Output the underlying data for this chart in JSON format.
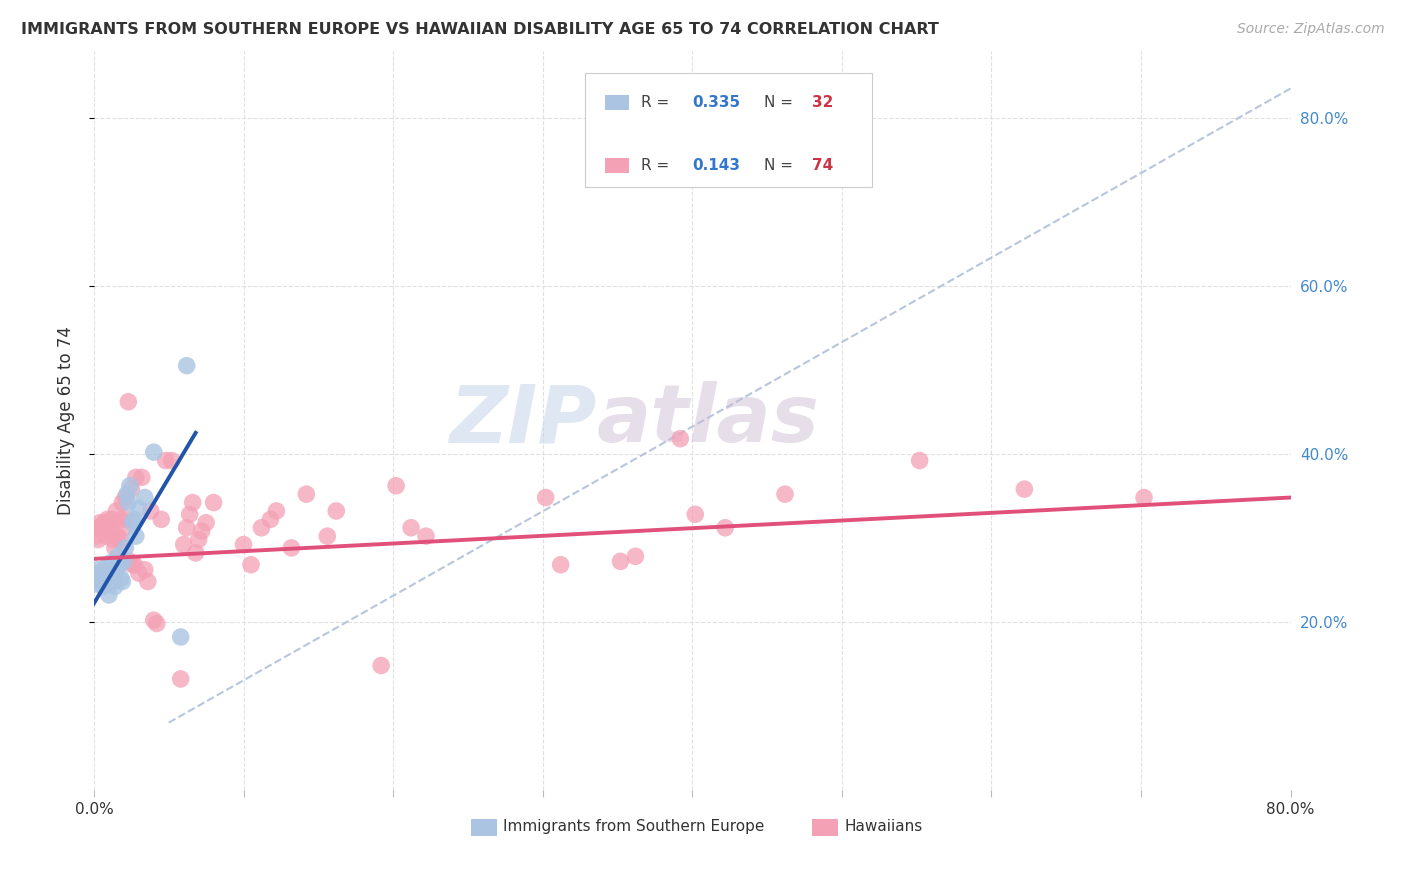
{
  "title": "IMMIGRANTS FROM SOUTHERN EUROPE VS HAWAIIAN DISABILITY AGE 65 TO 74 CORRELATION CHART",
  "source": "Source: ZipAtlas.com",
  "ylabel": "Disability Age 65 to 74",
  "xlim": [
    0.0,
    0.8
  ],
  "ylim": [
    0.0,
    0.88
  ],
  "yticks": [
    0.2,
    0.4,
    0.6,
    0.8
  ],
  "ytick_labels": [
    "20.0%",
    "40.0%",
    "60.0%",
    "80.0%"
  ],
  "xticks": [
    0.0,
    0.1,
    0.2,
    0.3,
    0.4,
    0.5,
    0.6,
    0.7,
    0.8
  ],
  "color_blue": "#aac4e2",
  "color_blue_line": "#2255aa",
  "color_pink": "#f4a0b5",
  "color_pink_line": "#e0507a",
  "color_dash": "#b0c0d8",
  "watermark_zip": "ZIP",
  "watermark_atlas": "atlas",
  "blue_points": [
    [
      0.001,
      0.245
    ],
    [
      0.002,
      0.262
    ],
    [
      0.003,
      0.258
    ],
    [
      0.004,
      0.25
    ],
    [
      0.005,
      0.255
    ],
    [
      0.006,
      0.242
    ],
    [
      0.007,
      0.255
    ],
    [
      0.008,
      0.265
    ],
    [
      0.009,
      0.26
    ],
    [
      0.01,
      0.232
    ],
    [
      0.011,
      0.27
    ],
    [
      0.012,
      0.255
    ],
    [
      0.013,
      0.248
    ],
    [
      0.014,
      0.242
    ],
    [
      0.015,
      0.262
    ],
    [
      0.016,
      0.278
    ],
    [
      0.017,
      0.268
    ],
    [
      0.018,
      0.252
    ],
    [
      0.019,
      0.248
    ],
    [
      0.02,
      0.272
    ],
    [
      0.021,
      0.288
    ],
    [
      0.022,
      0.352
    ],
    [
      0.023,
      0.342
    ],
    [
      0.024,
      0.362
    ],
    [
      0.026,
      0.318
    ],
    [
      0.027,
      0.322
    ],
    [
      0.028,
      0.302
    ],
    [
      0.03,
      0.335
    ],
    [
      0.034,
      0.348
    ],
    [
      0.04,
      0.402
    ],
    [
      0.058,
      0.182
    ],
    [
      0.062,
      0.505
    ]
  ],
  "pink_points": [
    [
      0.001,
      0.302
    ],
    [
      0.002,
      0.312
    ],
    [
      0.003,
      0.298
    ],
    [
      0.004,
      0.318
    ],
    [
      0.005,
      0.312
    ],
    [
      0.006,
      0.308
    ],
    [
      0.007,
      0.318
    ],
    [
      0.008,
      0.302
    ],
    [
      0.009,
      0.322
    ],
    [
      0.01,
      0.308
    ],
    [
      0.011,
      0.312
    ],
    [
      0.012,
      0.322
    ],
    [
      0.013,
      0.298
    ],
    [
      0.014,
      0.288
    ],
    [
      0.015,
      0.332
    ],
    [
      0.016,
      0.302
    ],
    [
      0.017,
      0.298
    ],
    [
      0.018,
      0.322
    ],
    [
      0.019,
      0.342
    ],
    [
      0.02,
      0.312
    ],
    [
      0.021,
      0.348
    ],
    [
      0.022,
      0.322
    ],
    [
      0.023,
      0.462
    ],
    [
      0.024,
      0.272
    ],
    [
      0.025,
      0.358
    ],
    [
      0.026,
      0.268
    ],
    [
      0.027,
      0.268
    ],
    [
      0.028,
      0.372
    ],
    [
      0.03,
      0.258
    ],
    [
      0.032,
      0.372
    ],
    [
      0.034,
      0.262
    ],
    [
      0.036,
      0.248
    ],
    [
      0.038,
      0.332
    ],
    [
      0.04,
      0.202
    ],
    [
      0.042,
      0.198
    ],
    [
      0.045,
      0.322
    ],
    [
      0.048,
      0.392
    ],
    [
      0.052,
      0.392
    ],
    [
      0.058,
      0.132
    ],
    [
      0.06,
      0.292
    ],
    [
      0.062,
      0.312
    ],
    [
      0.064,
      0.328
    ],
    [
      0.066,
      0.342
    ],
    [
      0.068,
      0.282
    ],
    [
      0.07,
      0.298
    ],
    [
      0.072,
      0.308
    ],
    [
      0.075,
      0.318
    ],
    [
      0.08,
      0.342
    ],
    [
      0.1,
      0.292
    ],
    [
      0.105,
      0.268
    ],
    [
      0.112,
      0.312
    ],
    [
      0.118,
      0.322
    ],
    [
      0.122,
      0.332
    ],
    [
      0.132,
      0.288
    ],
    [
      0.142,
      0.352
    ],
    [
      0.156,
      0.302
    ],
    [
      0.162,
      0.332
    ],
    [
      0.192,
      0.148
    ],
    [
      0.202,
      0.362
    ],
    [
      0.212,
      0.312
    ],
    [
      0.222,
      0.302
    ],
    [
      0.302,
      0.348
    ],
    [
      0.312,
      0.268
    ],
    [
      0.352,
      0.272
    ],
    [
      0.362,
      0.278
    ],
    [
      0.392,
      0.418
    ],
    [
      0.402,
      0.328
    ],
    [
      0.422,
      0.312
    ],
    [
      0.462,
      0.352
    ],
    [
      0.552,
      0.392
    ],
    [
      0.622,
      0.358
    ],
    [
      0.702,
      0.348
    ]
  ],
  "blue_line_x": [
    0.0,
    0.068
  ],
  "blue_line_y": [
    0.222,
    0.425
  ],
  "pink_line_x": [
    0.0,
    0.8
  ],
  "pink_line_y": [
    0.275,
    0.348
  ],
  "dash_line_x": [
    0.05,
    0.8
  ],
  "dash_line_y": [
    0.08,
    0.835
  ]
}
